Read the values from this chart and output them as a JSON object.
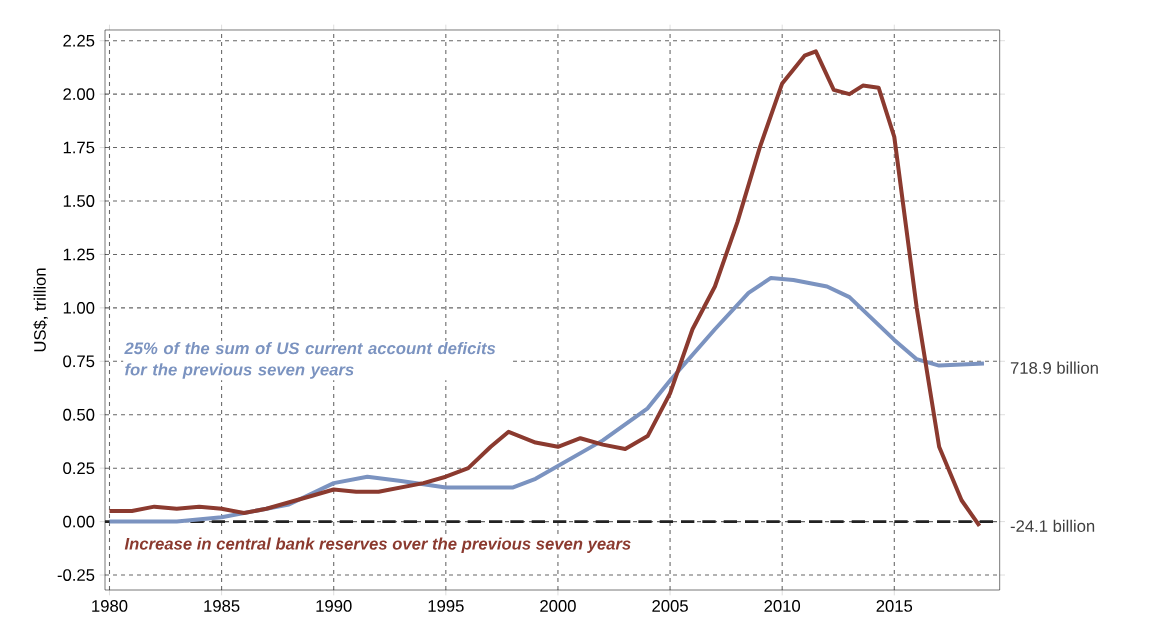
{
  "chart_data": {
    "type": "line",
    "ylabel": "US$, trillion",
    "xlim": [
      1979.8,
      2019.7
    ],
    "ylim": [
      -0.32,
      2.3
    ],
    "xticks": [
      1980,
      1985,
      1990,
      1995,
      2000,
      2005,
      2010,
      2015
    ],
    "yticks": [
      {
        "value": -0.25,
        "label": "-0.25"
      },
      {
        "value": 0,
        "label": "0.00"
      },
      {
        "value": 0.25,
        "label": "0.25"
      },
      {
        "value": 0.5,
        "label": "0.50"
      },
      {
        "value": 0.75,
        "label": "0.75"
      },
      {
        "value": 1,
        "label": "1.00"
      },
      {
        "value": 1.25,
        "label": "1.25"
      },
      {
        "value": 1.5,
        "label": "1.50"
      },
      {
        "value": 1.75,
        "label": "1.75"
      },
      {
        "value": 2,
        "label": "2.00"
      },
      {
        "value": 2.25,
        "label": "2.25"
      }
    ],
    "grid": true,
    "marker": "none",
    "line_style": "solid",
    "series": [
      {
        "name": "25% of the sum of US current account deficits for the previous seven years",
        "color": "#7b93c0",
        "x": [
          1980,
          1983,
          1985,
          1988,
          1990,
          1991.5,
          1993,
          1995,
          1998,
          1999,
          2000,
          2002,
          2004,
          2005,
          2007,
          2008.5,
          2009.5,
          2010.5,
          2012,
          2013,
          2015,
          2016,
          2017,
          2019
        ],
        "values": [
          0.0,
          0.0,
          0.02,
          0.08,
          0.18,
          0.21,
          0.19,
          0.16,
          0.16,
          0.2,
          0.26,
          0.38,
          0.53,
          0.66,
          0.9,
          1.07,
          1.14,
          1.13,
          1.1,
          1.05,
          0.85,
          0.76,
          0.73,
          0.74
        ]
      },
      {
        "name": "Increase in central bank reserves over the previous seven years",
        "color": "#8b3a2f",
        "x": [
          1980,
          1981,
          1982,
          1983,
          1984,
          1985,
          1986,
          1987,
          1989,
          1990,
          1991,
          1992,
          1994,
          1995,
          1996,
          1997,
          1997.8,
          1999,
          2000,
          2001,
          2002,
          2003,
          2004,
          2005,
          2006,
          2007,
          2008,
          2009,
          2010,
          2011,
          2011.5,
          2012.3,
          2013,
          2013.6,
          2014.3,
          2015,
          2016,
          2017,
          2018,
          2018.8
        ],
        "values": [
          0.05,
          0.05,
          0.07,
          0.06,
          0.07,
          0.06,
          0.04,
          0.06,
          0.12,
          0.15,
          0.14,
          0.14,
          0.18,
          0.21,
          0.25,
          0.35,
          0.42,
          0.37,
          0.35,
          0.39,
          0.36,
          0.34,
          0.4,
          0.6,
          0.9,
          1.1,
          1.4,
          1.75,
          2.05,
          2.18,
          2.2,
          2.02,
          2.0,
          2.04,
          2.03,
          1.8,
          1.0,
          0.35,
          0.1,
          -0.02
        ]
      }
    ],
    "ref_lines": [
      {
        "axis": "y",
        "value": 0,
        "color": "#222222",
        "line_style": "dashed"
      }
    ],
    "annotations": [
      {
        "text": "718.9 billion",
        "x": 2019,
        "y": 0.72
      },
      {
        "text": "-24.1 billion",
        "x": 2019,
        "y": -0.02
      }
    ]
  }
}
